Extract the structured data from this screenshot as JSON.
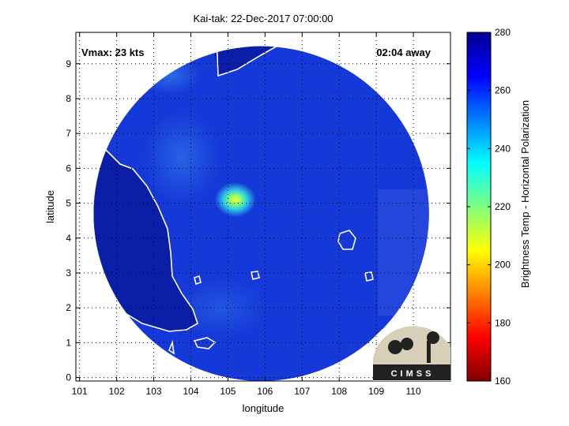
{
  "chart_data": {
    "type": "heatmap",
    "title": "Kai-tak: 22-Dec-2017 07:00:00",
    "xlabel": "longitude",
    "ylabel": "latitude",
    "xlim": [
      100.9,
      111.0
    ],
    "ylim": [
      -0.1,
      9.9
    ],
    "xticks": [
      101,
      102,
      103,
      104,
      105,
      106,
      107,
      108,
      109,
      110
    ],
    "yticks": [
      0,
      1,
      2,
      3,
      4,
      5,
      6,
      7,
      8,
      9
    ],
    "grid": true,
    "colorbar": {
      "label": "Brightness Temp - Horizontal Polarization",
      "min": 160,
      "max": 280,
      "ticks": [
        160,
        180,
        200,
        220,
        240,
        260,
        280
      ],
      "colormap": "jet"
    },
    "annotations": {
      "vmax": "Vmax: 23 kts",
      "time_offset": "02:04 away"
    },
    "storm_center": {
      "lon": 105.2,
      "lat": 5.1,
      "min_tb": 215
    },
    "swath": {
      "center_lon": 105.9,
      "center_lat": 4.7,
      "radius_deg": 4.8
    },
    "logo": "CIMSS",
    "colors": {
      "background_field": "#1538d8",
      "outside_swath": "#ffffff",
      "coastline": "#ffffff",
      "land_blue": "#0a1eb8"
    }
  }
}
